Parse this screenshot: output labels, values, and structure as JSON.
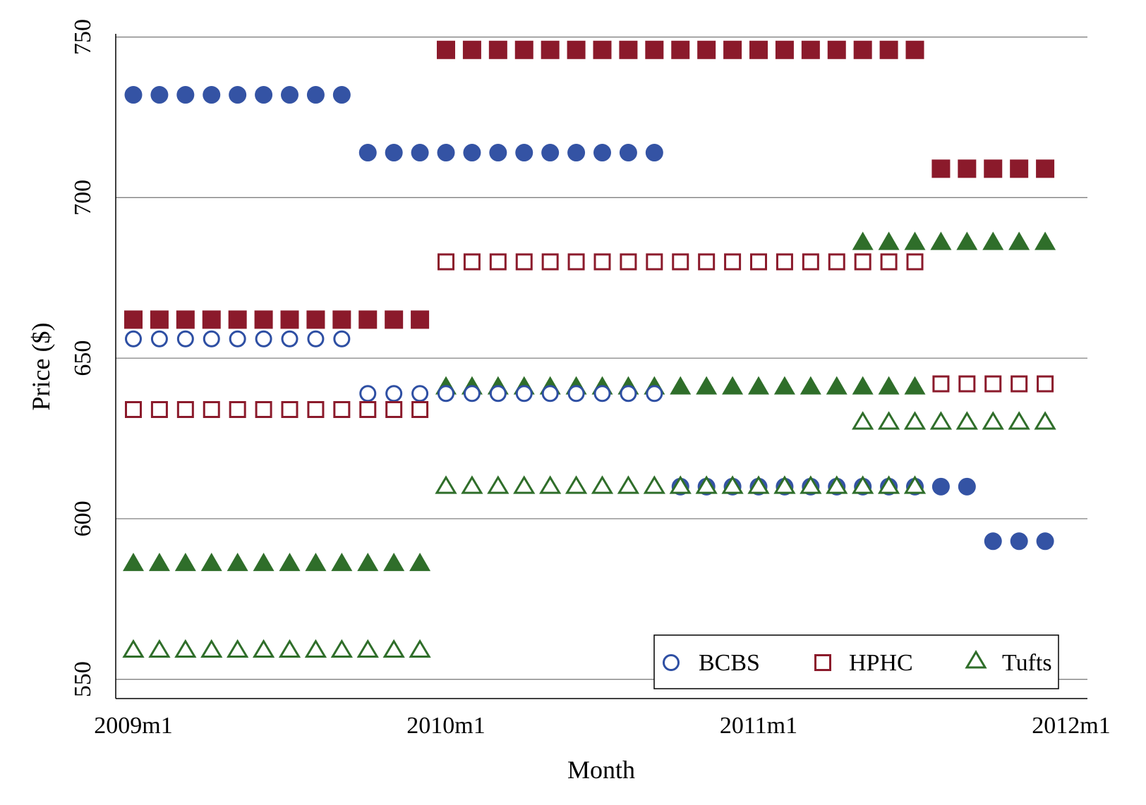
{
  "chart_data": {
    "type": "scatter",
    "xlabel": "Month",
    "ylabel": "Price ($)",
    "x_ticks": [
      "2009m1",
      "2010m1",
      "2011m1",
      "2012m1"
    ],
    "y_ticks": [
      550,
      600,
      650,
      700,
      750
    ],
    "xlim": [
      0,
      36
    ],
    "ylim": [
      544,
      751
    ],
    "grid": "horizontal",
    "legend_position": "bottom-right",
    "x_units": "months since 2009m1",
    "series": [
      {
        "name": "BCBS",
        "marker": "circle",
        "filled": false,
        "color": "#2e4fa3",
        "points": [
          [
            0,
            656
          ],
          [
            1,
            656
          ],
          [
            2,
            656
          ],
          [
            3,
            656
          ],
          [
            4,
            656
          ],
          [
            5,
            656
          ],
          [
            6,
            656
          ],
          [
            7,
            656
          ],
          [
            8,
            656
          ],
          [
            9,
            639
          ],
          [
            10,
            639
          ],
          [
            11,
            639
          ],
          [
            12,
            639
          ],
          [
            13,
            639
          ],
          [
            14,
            639
          ],
          [
            15,
            639
          ],
          [
            16,
            639
          ],
          [
            17,
            639
          ],
          [
            18,
            639
          ],
          [
            19,
            639
          ],
          [
            20,
            639
          ]
        ]
      },
      {
        "name": "",
        "legend_group": "BCBS",
        "marker": "circle",
        "filled": true,
        "color": "#3453a4",
        "points": [
          [
            0,
            732
          ],
          [
            1,
            732
          ],
          [
            2,
            732
          ],
          [
            3,
            732
          ],
          [
            4,
            732
          ],
          [
            5,
            732
          ],
          [
            6,
            732
          ],
          [
            7,
            732
          ],
          [
            8,
            732
          ],
          [
            9,
            714
          ],
          [
            10,
            714
          ],
          [
            11,
            714
          ],
          [
            12,
            714
          ],
          [
            13,
            714
          ],
          [
            14,
            714
          ],
          [
            15,
            714
          ],
          [
            16,
            714
          ],
          [
            17,
            714
          ],
          [
            18,
            714
          ],
          [
            19,
            714
          ],
          [
            20,
            714
          ],
          [
            21,
            610
          ],
          [
            22,
            610
          ],
          [
            23,
            610
          ],
          [
            24,
            610
          ],
          [
            25,
            610
          ],
          [
            26,
            610
          ],
          [
            27,
            610
          ],
          [
            28,
            610
          ],
          [
            29,
            610
          ],
          [
            30,
            610
          ],
          [
            31,
            610
          ],
          [
            32,
            610
          ],
          [
            33,
            593
          ],
          [
            34,
            593
          ],
          [
            35,
            593
          ]
        ]
      },
      {
        "name": "HPHC",
        "marker": "square",
        "filled": false,
        "color": "#8b1a2b",
        "points": [
          [
            0,
            634
          ],
          [
            1,
            634
          ],
          [
            2,
            634
          ],
          [
            3,
            634
          ],
          [
            4,
            634
          ],
          [
            5,
            634
          ],
          [
            6,
            634
          ],
          [
            7,
            634
          ],
          [
            8,
            634
          ],
          [
            9,
            634
          ],
          [
            10,
            634
          ],
          [
            11,
            634
          ],
          [
            12,
            680
          ],
          [
            13,
            680
          ],
          [
            14,
            680
          ],
          [
            15,
            680
          ],
          [
            16,
            680
          ],
          [
            17,
            680
          ],
          [
            18,
            680
          ],
          [
            19,
            680
          ],
          [
            20,
            680
          ],
          [
            21,
            680
          ],
          [
            22,
            680
          ],
          [
            23,
            680
          ],
          [
            24,
            680
          ],
          [
            25,
            680
          ],
          [
            26,
            680
          ],
          [
            27,
            680
          ],
          [
            28,
            680
          ],
          [
            29,
            680
          ],
          [
            30,
            680
          ],
          [
            31,
            642
          ],
          [
            32,
            642
          ],
          [
            33,
            642
          ],
          [
            34,
            642
          ],
          [
            35,
            642
          ]
        ]
      },
      {
        "name": "",
        "legend_group": "HPHC",
        "marker": "square",
        "filled": true,
        "color": "#8b1a2b",
        "points": [
          [
            0,
            662
          ],
          [
            1,
            662
          ],
          [
            2,
            662
          ],
          [
            3,
            662
          ],
          [
            4,
            662
          ],
          [
            5,
            662
          ],
          [
            6,
            662
          ],
          [
            7,
            662
          ],
          [
            8,
            662
          ],
          [
            9,
            662
          ],
          [
            10,
            662
          ],
          [
            11,
            662
          ],
          [
            12,
            746
          ],
          [
            13,
            746
          ],
          [
            14,
            746
          ],
          [
            15,
            746
          ],
          [
            16,
            746
          ],
          [
            17,
            746
          ],
          [
            18,
            746
          ],
          [
            19,
            746
          ],
          [
            20,
            746
          ],
          [
            21,
            746
          ],
          [
            22,
            746
          ],
          [
            23,
            746
          ],
          [
            24,
            746
          ],
          [
            25,
            746
          ],
          [
            26,
            746
          ],
          [
            27,
            746
          ],
          [
            28,
            746
          ],
          [
            29,
            746
          ],
          [
            30,
            746
          ],
          [
            31,
            709
          ],
          [
            32,
            709
          ],
          [
            33,
            709
          ],
          [
            34,
            709
          ],
          [
            35,
            709
          ]
        ]
      },
      {
        "name": "Tufts",
        "marker": "triangle",
        "filled": false,
        "color": "#2f6e2a",
        "points": [
          [
            0,
            559
          ],
          [
            1,
            559
          ],
          [
            2,
            559
          ],
          [
            3,
            559
          ],
          [
            4,
            559
          ],
          [
            5,
            559
          ],
          [
            6,
            559
          ],
          [
            7,
            559
          ],
          [
            8,
            559
          ],
          [
            9,
            559
          ],
          [
            10,
            559
          ],
          [
            11,
            559
          ],
          [
            12,
            610
          ],
          [
            13,
            610
          ],
          [
            14,
            610
          ],
          [
            15,
            610
          ],
          [
            16,
            610
          ],
          [
            17,
            610
          ],
          [
            18,
            610
          ],
          [
            19,
            610
          ],
          [
            20,
            610
          ],
          [
            21,
            610
          ],
          [
            22,
            610
          ],
          [
            23,
            610
          ],
          [
            24,
            610
          ],
          [
            25,
            610
          ],
          [
            26,
            610
          ],
          [
            27,
            610
          ],
          [
            28,
            610
          ],
          [
            29,
            610
          ],
          [
            30,
            610
          ],
          [
            28,
            630
          ],
          [
            29,
            630
          ],
          [
            30,
            630
          ],
          [
            31,
            630
          ],
          [
            32,
            630
          ],
          [
            33,
            630
          ],
          [
            34,
            630
          ],
          [
            35,
            630
          ]
        ]
      },
      {
        "name": "",
        "legend_group": "Tufts",
        "marker": "triangle",
        "filled": true,
        "color": "#2f6e2a",
        "points": [
          [
            0,
            586
          ],
          [
            1,
            586
          ],
          [
            2,
            586
          ],
          [
            3,
            586
          ],
          [
            4,
            586
          ],
          [
            5,
            586
          ],
          [
            6,
            586
          ],
          [
            7,
            586
          ],
          [
            8,
            586
          ],
          [
            9,
            586
          ],
          [
            10,
            586
          ],
          [
            11,
            586
          ],
          [
            12,
            641
          ],
          [
            13,
            641
          ],
          [
            14,
            641
          ],
          [
            15,
            641
          ],
          [
            16,
            641
          ],
          [
            17,
            641
          ],
          [
            18,
            641
          ],
          [
            19,
            641
          ],
          [
            20,
            641
          ],
          [
            21,
            641
          ],
          [
            22,
            641
          ],
          [
            23,
            641
          ],
          [
            24,
            641
          ],
          [
            25,
            641
          ],
          [
            26,
            641
          ],
          [
            27,
            641
          ],
          [
            28,
            641
          ],
          [
            29,
            641
          ],
          [
            30,
            641
          ],
          [
            28,
            686
          ],
          [
            29,
            686
          ],
          [
            30,
            686
          ],
          [
            31,
            686
          ],
          [
            32,
            686
          ],
          [
            33,
            686
          ],
          [
            34,
            686
          ],
          [
            35,
            686
          ]
        ]
      }
    ],
    "legend": [
      {
        "label": "BCBS",
        "marker": "circle",
        "color": "#2e4fa3"
      },
      {
        "label": "HPHC",
        "marker": "square",
        "color": "#8b1a2b"
      },
      {
        "label": "Tufts",
        "marker": "triangle",
        "color": "#2f6e2a"
      }
    ]
  }
}
